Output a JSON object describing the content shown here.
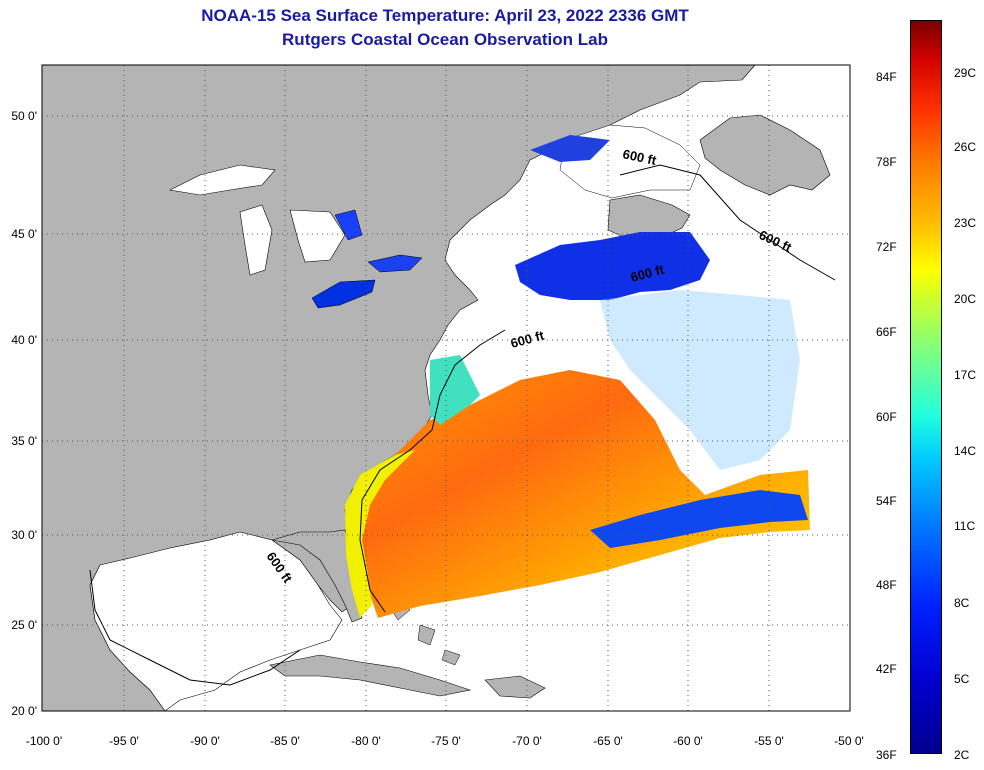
{
  "header": {
    "title": "NOAA-15 Sea Surface Temperature:  April 23, 2022 2336 GMT",
    "subtitle": "Rutgers Coastal Ocean Observation Lab"
  },
  "axes": {
    "lon_ticks": [
      "-100 0'",
      "-95 0'",
      "-90 0'",
      "-85 0'",
      "-80 0'",
      "-75 0'",
      "-70 0'",
      "-65 0'",
      "-60 0'",
      "-55 0'",
      "-50 0'"
    ],
    "lat_ticks": [
      "50 0'",
      "45 0'",
      "40 0'",
      "35 0'",
      "30 0'",
      "25 0'",
      "20 0'"
    ]
  },
  "contour_label": "600 ft",
  "colorbar": {
    "fahrenheit": [
      "84F",
      "78F",
      "72F",
      "66F",
      "60F",
      "54F",
      "48F",
      "42F",
      "36F"
    ],
    "celsius": [
      "29C",
      "26C",
      "23C",
      "20C",
      "17C",
      "14C",
      "11C",
      "8C",
      "5C",
      "2C"
    ]
  },
  "colors": {
    "land": "#b4b4b4",
    "title": "#1a1aa6",
    "warm": "#ff7a10",
    "cold": "#0020e0"
  }
}
